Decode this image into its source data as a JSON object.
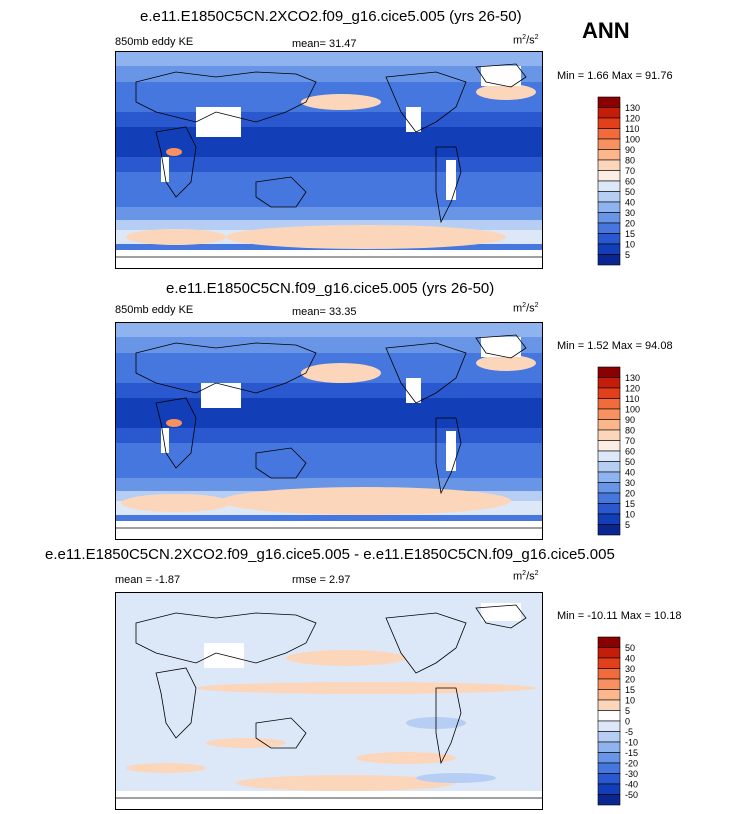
{
  "season": "ANN",
  "panels": [
    {
      "title": "e.e11.E1850C5CN.2XCO2.f09_g16.cice5.005 (yrs 26-50)",
      "field_label": "850mb eddy KE",
      "stat_label": "mean=",
      "stat_value": "31.47",
      "rmse_label": "",
      "rmse_value": "",
      "units_base": "m",
      "units_exp1": "2",
      "units_mid": "/s",
      "units_exp2": "2",
      "minmax": "Min =  1.66 Max =  91.76",
      "cbar_labels": [
        "130",
        "120",
        "110",
        "100",
        "90",
        "80",
        "70",
        "60",
        "50",
        "40",
        "30",
        "20",
        "15",
        "10",
        "5"
      ],
      "cbar_colors": [
        "#8b0000",
        "#c41e0a",
        "#e2401b",
        "#f26b3a",
        "#f7915f",
        "#fbb68c",
        "#fcd6bb",
        "#fdeee3",
        "#dce8f8",
        "#b6cef3",
        "#8fb3ee",
        "#6995e6",
        "#4677de",
        "#2a58cf",
        "#123fb8",
        "#0a2791"
      ]
    },
    {
      "title": "e.e11.E1850C5CN.f09_g16.cice5.005 (yrs 26-50)",
      "field_label": "850mb eddy KE",
      "stat_label": "mean=",
      "stat_value": "33.35",
      "rmse_label": "",
      "rmse_value": "",
      "units_base": "m",
      "units_exp1": "2",
      "units_mid": "/s",
      "units_exp2": "2",
      "minmax": "Min =  1.52 Max =  94.08",
      "cbar_labels": [
        "130",
        "120",
        "110",
        "100",
        "90",
        "80",
        "70",
        "60",
        "50",
        "40",
        "30",
        "20",
        "15",
        "10",
        "5"
      ],
      "cbar_colors": [
        "#8b0000",
        "#c41e0a",
        "#e2401b",
        "#f26b3a",
        "#f7915f",
        "#fbb68c",
        "#fcd6bb",
        "#fdeee3",
        "#dce8f8",
        "#b6cef3",
        "#8fb3ee",
        "#6995e6",
        "#4677de",
        "#2a58cf",
        "#123fb8",
        "#0a2791"
      ]
    },
    {
      "title": "e.e11.E1850C5CN.2XCO2.f09_g16.cice5.005 - e.e11.E1850C5CN.f09_g16.cice5.005",
      "field_label": "",
      "stat_label": "mean =",
      "stat_value": "-1.87",
      "rmse_label": "rmse =",
      "rmse_value": "2.97",
      "units_base": "m",
      "units_exp1": "2",
      "units_mid": "/s",
      "units_exp2": "2",
      "minmax": "Min = -10.11 Max =  10.18",
      "cbar_labels": [
        "50",
        "40",
        "30",
        "20",
        "15",
        "10",
        "5",
        "0",
        "-5",
        "-10",
        "-15",
        "-20",
        "-30",
        "-40",
        "-50"
      ],
      "cbar_colors": [
        "#8b0000",
        "#c41e0a",
        "#e2401b",
        "#f26b3a",
        "#f7915f",
        "#fbb68c",
        "#fcd6bb",
        "#ffffff",
        "#dce8f8",
        "#b6cef3",
        "#8fb3ee",
        "#6995e6",
        "#4677de",
        "#2a58cf",
        "#123fb8",
        "#0a2791"
      ]
    }
  ]
}
